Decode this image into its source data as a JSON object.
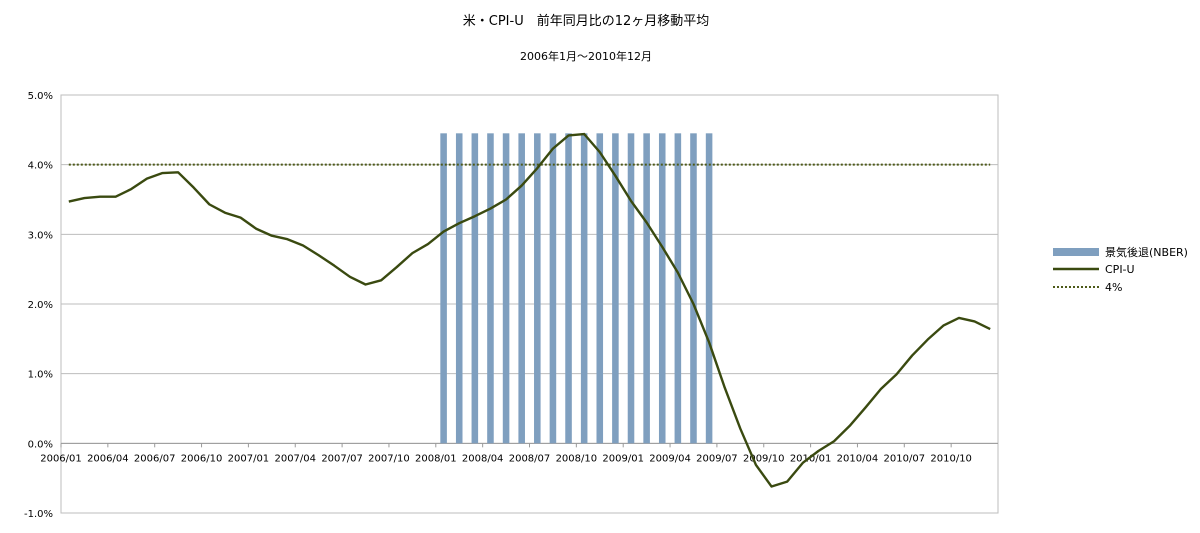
{
  "chart_data": {
    "type": "line",
    "title": "米・CPI-U　前年同月比の12ヶ月移動平均",
    "subtitle": "2006年1月～2010年12月",
    "ylim": [
      -1.0,
      5.0
    ],
    "y_ticks": [
      "-1.0%",
      "0.0%",
      "1.0%",
      "2.0%",
      "3.0%",
      "4.0%",
      "5.0%"
    ],
    "y_tick_values": [
      -1,
      0,
      1,
      2,
      3,
      4,
      5
    ],
    "x_ticks": [
      "2006/01",
      "2006/04",
      "2006/07",
      "2006/10",
      "2007/01",
      "2007/04",
      "2007/07",
      "2007/10",
      "2008/01",
      "2008/04",
      "2008/07",
      "2008/10",
      "2009/01",
      "2009/04",
      "2009/07",
      "2009/10",
      "2010/01",
      "2010/04",
      "2010/07",
      "2010/10"
    ],
    "x": [
      "2006/01",
      "2006/02",
      "2006/03",
      "2006/04",
      "2006/05",
      "2006/06",
      "2006/07",
      "2006/08",
      "2006/09",
      "2006/10",
      "2006/11",
      "2006/12",
      "2007/01",
      "2007/02",
      "2007/03",
      "2007/04",
      "2007/05",
      "2007/06",
      "2007/07",
      "2007/08",
      "2007/09",
      "2007/10",
      "2007/11",
      "2007/12",
      "2008/01",
      "2008/02",
      "2008/03",
      "2008/04",
      "2008/05",
      "2008/06",
      "2008/07",
      "2008/08",
      "2008/09",
      "2008/10",
      "2008/11",
      "2008/12",
      "2009/01",
      "2009/02",
      "2009/03",
      "2009/04",
      "2009/05",
      "2009/06",
      "2009/07",
      "2009/08",
      "2009/09",
      "2009/10",
      "2009/11",
      "2009/12",
      "2010/01",
      "2010/02",
      "2010/03",
      "2010/04",
      "2010/05",
      "2010/06",
      "2010/07",
      "2010/08",
      "2010/09",
      "2010/10",
      "2010/11",
      "2010/12"
    ],
    "series": [
      {
        "name": "景気後退(NBER)",
        "type": "bar",
        "color": "#7f9fbf",
        "values": [
          0,
          0,
          0,
          0,
          0,
          0,
          0,
          0,
          0,
          0,
          0,
          0,
          0,
          0,
          0,
          0,
          0,
          0,
          0,
          0,
          0,
          0,
          0,
          0,
          4.45,
          4.45,
          4.45,
          4.45,
          4.45,
          4.45,
          4.45,
          4.45,
          4.45,
          4.45,
          4.45,
          4.45,
          4.45,
          4.45,
          4.45,
          4.45,
          4.45,
          4.45,
          0,
          0,
          0,
          0,
          0,
          0,
          0,
          0,
          0,
          0,
          0,
          0,
          0,
          0,
          0,
          0,
          0,
          0
        ]
      },
      {
        "name": "CPI-U",
        "type": "line",
        "color": "#3a4a10",
        "values": [
          3.47,
          3.52,
          3.54,
          3.54,
          3.65,
          3.8,
          3.88,
          3.89,
          3.67,
          3.43,
          3.31,
          3.24,
          3.08,
          2.98,
          2.93,
          2.84,
          2.7,
          2.55,
          2.39,
          2.28,
          2.34,
          2.53,
          2.73,
          2.86,
          3.04,
          3.16,
          3.26,
          3.37,
          3.5,
          3.7,
          3.95,
          4.23,
          4.42,
          4.44,
          4.18,
          3.84,
          3.48,
          3.17,
          2.82,
          2.45,
          2.0,
          1.45,
          0.8,
          0.21,
          -0.31,
          -0.62,
          -0.55,
          -0.28,
          -0.11,
          0.03,
          0.25,
          0.51,
          0.78,
          0.99,
          1.26,
          1.49,
          1.69,
          1.8,
          1.75,
          1.64
        ]
      },
      {
        "name": "4%",
        "type": "line-dotted",
        "color": "#4d5a18",
        "values": [
          4,
          4,
          4,
          4,
          4,
          4,
          4,
          4,
          4,
          4,
          4,
          4,
          4,
          4,
          4,
          4,
          4,
          4,
          4,
          4,
          4,
          4,
          4,
          4,
          4,
          4,
          4,
          4,
          4,
          4,
          4,
          4,
          4,
          4,
          4,
          4,
          4,
          4,
          4,
          4,
          4,
          4,
          4,
          4,
          4,
          4,
          4,
          4,
          4,
          4,
          4,
          4,
          4,
          4,
          4,
          4,
          4,
          4,
          4,
          4
        ]
      }
    ],
    "legend_position": "right",
    "grid": true
  }
}
